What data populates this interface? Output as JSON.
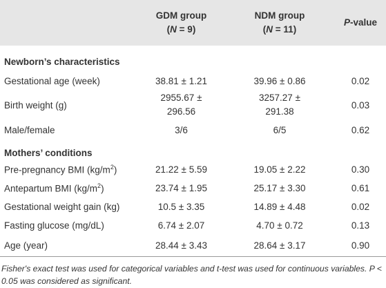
{
  "table": {
    "header": {
      "gdm": {
        "name": "GDM group",
        "open": "(",
        "symbol": "N",
        "rest": " = 9)"
      },
      "ndm": {
        "name": "NDM group",
        "open": "(",
        "symbol": "N",
        "rest": " = 11)"
      },
      "p": {
        "symbol": "P",
        "rest": "-value"
      }
    },
    "rows": [
      {
        "section": "Newborn’s characteristics"
      },
      {
        "label": "Gestational age (week)",
        "gdm": "38.81 ± 1.21",
        "ndm": "39.96 ± 0.86",
        "p": "0.02"
      },
      {
        "label": "Birth weight (g)",
        "gdm": "2955.67 ± 296.56",
        "ndm": "3257.27 ± 291.38",
        "p": "0.03"
      },
      {
        "label": "Male/female",
        "gdm": "3/6",
        "ndm": "6/5",
        "p": "0.62"
      },
      {
        "section": "Mothers’ conditions"
      },
      {
        "label": "Pre-pregnancy BMI (kg/m",
        "label_sup": "2",
        "label_end": ")",
        "gdm": "21.22 ± 5.59",
        "ndm": "19.05 ± 2.22",
        "p": "0.30"
      },
      {
        "label": "Antepartum BMI (kg/m",
        "label_sup": "2",
        "label_end": ")",
        "gdm": "23.74 ± 1.95",
        "ndm": "25.17 ± 3.30",
        "p": "0.61"
      },
      {
        "label": "Gestational weight gain (kg)",
        "gdm": "10.5 ± 3.35",
        "ndm": "14.89 ± 4.48",
        "p": "0.02"
      },
      {
        "label": "Fasting glucose (mg/dL)",
        "gdm": "6.74 ± 2.07",
        "ndm": "4.70 ± 0.72",
        "p": "0.13"
      },
      {
        "label": "Age (year)",
        "gdm": "28.44 ± 3.43",
        "ndm": "28.64 ± 3.17",
        "p": "0.90"
      }
    ],
    "footnote": "Fisher's exact test was used for categorical variables and t-test was used for continuous variables. P < 0.05 was considered as significant."
  }
}
